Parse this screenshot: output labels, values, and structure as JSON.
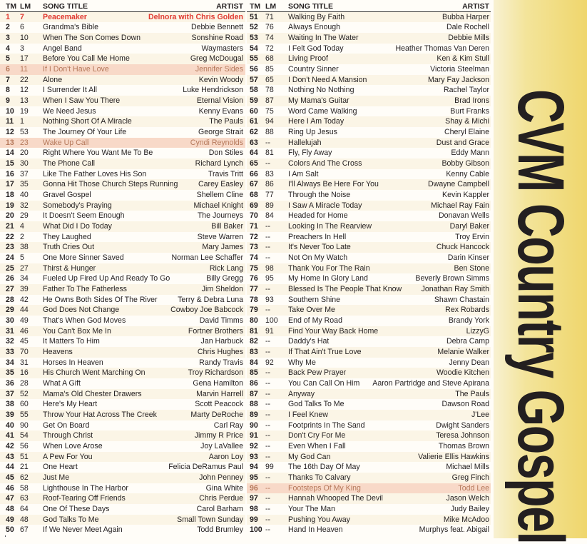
{
  "header": {
    "tm": "TM",
    "lm": "LM",
    "title": "SONG TITLE",
    "artist": "ARTIST"
  },
  "banner": {
    "title": "CVM Country Gospel",
    "background": "#efd66c"
  },
  "colors": {
    "featured": "#e03a32",
    "highlight": "#f8d9c8"
  },
  "left": [
    {
      "tm": "1",
      "lm": "7",
      "title": "Peacemaker",
      "artist": "Delnora with Chris Golden",
      "featured": true
    },
    {
      "tm": "2",
      "lm": "6",
      "title": "Grandma's Bible",
      "artist": "Debbie Bennett"
    },
    {
      "tm": "3",
      "lm": "10",
      "title": "When The Son Comes Down",
      "artist": "Sonshine Road"
    },
    {
      "tm": "4",
      "lm": "3",
      "title": "Angel Band",
      "artist": "Waymasters"
    },
    {
      "tm": "5",
      "lm": "17",
      "title": "Before You Call Me Home",
      "artist": "Greg McDougal"
    },
    {
      "tm": "6",
      "lm": "11",
      "title": "If I Don't Have Love",
      "artist": "Jennifer Sides",
      "highlight": true
    },
    {
      "tm": "7",
      "lm": "22",
      "title": "Alone",
      "artist": "Kevin Woody"
    },
    {
      "tm": "8",
      "lm": "12",
      "title": "I Surrender It All",
      "artist": "Luke Hendrickson"
    },
    {
      "tm": "9",
      "lm": "13",
      "title": "When I Saw You There",
      "artist": "Eternal Vision"
    },
    {
      "tm": "10",
      "lm": "19",
      "title": "We Need Jesus",
      "artist": "Kenny Evans"
    },
    {
      "tm": "11",
      "lm": "1",
      "title": "Nothing Short Of A Miracle",
      "artist": "The Pauls"
    },
    {
      "tm": "12",
      "lm": "53",
      "title": "The Journey Of Your Life",
      "artist": "George Strait"
    },
    {
      "tm": "13",
      "lm": "23",
      "title": "Wake Up Call",
      "artist": "Cyndi Reynolds",
      "highlight": true
    },
    {
      "tm": "14",
      "lm": "20",
      "title": "Right Where You Want Me To Be",
      "artist": "Don Stiles"
    },
    {
      "tm": "15",
      "lm": "30",
      "title": "The Phone Call",
      "artist": "Richard Lynch"
    },
    {
      "tm": "16",
      "lm": "37",
      "title": "Like The Father Loves His Son",
      "artist": "Travis Tritt"
    },
    {
      "tm": "17",
      "lm": "35",
      "title": "Gonna Hit Those Church Steps Running",
      "artist": "Carey Easley"
    },
    {
      "tm": "18",
      "lm": "40",
      "title": "Gravel Gospel",
      "artist": "Shellem Cline"
    },
    {
      "tm": "19",
      "lm": "32",
      "title": "Somebody's Praying",
      "artist": "Michael Knight"
    },
    {
      "tm": "20",
      "lm": "29",
      "title": "It Doesn't Seem Enough",
      "artist": "The Journeys"
    },
    {
      "tm": "21",
      "lm": "4",
      "title": "What Did I Do Today",
      "artist": "Bill Baker"
    },
    {
      "tm": "22",
      "lm": "2",
      "title": "They Laughed",
      "artist": "Steve Warren"
    },
    {
      "tm": "23",
      "lm": "38",
      "title": "Truth Cries Out",
      "artist": "Mary James"
    },
    {
      "tm": "24",
      "lm": "5",
      "title": "One More Sinner Saved",
      "artist": "Norman Lee Schaffer"
    },
    {
      "tm": "25",
      "lm": "27",
      "title": "Thirst & Hunger",
      "artist": "Rick Lang"
    },
    {
      "tm": "26",
      "lm": "34",
      "title": "Fueled Up Fired Up And Ready To Go",
      "artist": "Billy Gregg"
    },
    {
      "tm": "27",
      "lm": "39",
      "title": "Father To The Fatherless",
      "artist": "Jim Sheldon"
    },
    {
      "tm": "28",
      "lm": "42",
      "title": "He Owns Both Sides Of The River",
      "artist": "Terry & Debra Luna"
    },
    {
      "tm": "29",
      "lm": "44",
      "title": "God Does Not Change",
      "artist": "Cowboy Joe Babcock"
    },
    {
      "tm": "30",
      "lm": "49",
      "title": "That's When God Moves",
      "artist": "David Timms"
    },
    {
      "tm": "31",
      "lm": "46",
      "title": "You Can't Box Me In",
      "artist": "Fortner Brothers"
    },
    {
      "tm": "32",
      "lm": "45",
      "title": "It Matters To Him",
      "artist": "Jan Harbuck"
    },
    {
      "tm": "33",
      "lm": "70",
      "title": "Heavens",
      "artist": "Chris Hughes"
    },
    {
      "tm": "34",
      "lm": "31",
      "title": "Horses In Heaven",
      "artist": "Randy Travis"
    },
    {
      "tm": "35",
      "lm": "16",
      "title": "His Church Went Marching On",
      "artist": "Troy Richardson"
    },
    {
      "tm": "36",
      "lm": "28",
      "title": "What A Gift",
      "artist": "Gena Hamilton"
    },
    {
      "tm": "37",
      "lm": "52",
      "title": "Mama's Old Chester Drawers",
      "artist": "Marvin Harrell"
    },
    {
      "tm": "38",
      "lm": "60",
      "title": "Here's My Heart",
      "artist": "Scott Peacock"
    },
    {
      "tm": "39",
      "lm": "55",
      "title": "Throw Your Hat Across The Creek",
      "artist": "Marty DeRoche"
    },
    {
      "tm": "40",
      "lm": "90",
      "title": "Get On Board",
      "artist": "Carl Ray"
    },
    {
      "tm": "41",
      "lm": "54",
      "title": "Through Christ",
      "artist": "Jimmy R Price"
    },
    {
      "tm": "42",
      "lm": "56",
      "title": "When Love Arose",
      "artist": "Joy LaVallee"
    },
    {
      "tm": "43",
      "lm": "51",
      "title": "A Pew For You",
      "artist": "Aaron Loy"
    },
    {
      "tm": "44",
      "lm": "21",
      "title": "One Heart",
      "artist": "Felicia DeRamus Paul"
    },
    {
      "tm": "45",
      "lm": "62",
      "title": "Just Me",
      "artist": "John Penney"
    },
    {
      "tm": "46",
      "lm": "58",
      "title": "Lighthouse In The Harbor",
      "artist": "Gina White"
    },
    {
      "tm": "47",
      "lm": "63",
      "title": "Roof-Tearing Off Friends",
      "artist": "Chris Perdue"
    },
    {
      "tm": "48",
      "lm": "64",
      "title": "One Of These Days",
      "artist": "Carol Barham"
    },
    {
      "tm": "49",
      "lm": "48",
      "title": "God Talks To Me",
      "artist": "Small Town Sunday"
    },
    {
      "tm": "50",
      "lm": "67",
      "title": "If We Never Meet Again",
      "artist": "Todd Brumley"
    }
  ],
  "right": [
    {
      "tm": "51",
      "lm": "71",
      "title": "Walking By Faith",
      "artist": "Bubba Harper"
    },
    {
      "tm": "52",
      "lm": "76",
      "title": "Always Enough",
      "artist": "Dale Rochell"
    },
    {
      "tm": "53",
      "lm": "74",
      "title": "Waiting In The Water",
      "artist": "Debbie Mills"
    },
    {
      "tm": "54",
      "lm": "72",
      "title": "I Felt God Today",
      "artist": "Heather Thomas Van Deren"
    },
    {
      "tm": "55",
      "lm": "68",
      "title": "Living Proof",
      "artist": "Ken & Kim Stull"
    },
    {
      "tm": "56",
      "lm": "85",
      "title": "Country Sinner",
      "artist": "Victoria Steelman"
    },
    {
      "tm": "57",
      "lm": "65",
      "title": "I Don't Need A Mansion",
      "artist": "Mary Fay Jackson"
    },
    {
      "tm": "58",
      "lm": "78",
      "title": "Nothing No Nothing",
      "artist": "Rachel Taylor"
    },
    {
      "tm": "59",
      "lm": "87",
      "title": "My Mama's Guitar",
      "artist": "Brad Irons"
    },
    {
      "tm": "60",
      "lm": "75",
      "title": "Word Came Walking",
      "artist": "Burt Franks"
    },
    {
      "tm": "61",
      "lm": "94",
      "title": "Here I Am Today",
      "artist": "Shay & Michi"
    },
    {
      "tm": "62",
      "lm": "88",
      "title": "Ring Up Jesus",
      "artist": "Cheryl Elaine"
    },
    {
      "tm": "63",
      "lm": "--",
      "title": "Hallelujah",
      "artist": "Dust and Grace"
    },
    {
      "tm": "64",
      "lm": "81",
      "title": "Fly, Fly Away",
      "artist": "Eddy Mann"
    },
    {
      "tm": "65",
      "lm": "--",
      "title": "Colors And The Cross",
      "artist": "Bobby Gibson"
    },
    {
      "tm": "66",
      "lm": "83",
      "title": "I Am Salt",
      "artist": "Kenny Cable"
    },
    {
      "tm": "67",
      "lm": "86",
      "title": "I'll Always Be Here For You",
      "artist": "Dwayne Campbell"
    },
    {
      "tm": "68",
      "lm": "77",
      "title": "Through the Noise",
      "artist": "Kevin Kappler"
    },
    {
      "tm": "69",
      "lm": "89",
      "title": "I Saw A Miracle Today",
      "artist": "Michael Ray Fain"
    },
    {
      "tm": "70",
      "lm": "84",
      "title": "Headed for Home",
      "artist": "Donavan Wells"
    },
    {
      "tm": "71",
      "lm": "--",
      "title": "Looking In The Rearview",
      "artist": "Daryl Baker"
    },
    {
      "tm": "72",
      "lm": "--",
      "title": "Preachers In Hell",
      "artist": "Troy Ervin"
    },
    {
      "tm": "73",
      "lm": "--",
      "title": "It's Never Too Late",
      "artist": "Chuck Hancock"
    },
    {
      "tm": "74",
      "lm": "--",
      "title": "Not On My Watch",
      "artist": "Darin Kinser"
    },
    {
      "tm": "75",
      "lm": "98",
      "title": "Thank You For The Rain",
      "artist": "Ben Stone"
    },
    {
      "tm": "76",
      "lm": "95",
      "title": "My Home In Glory Land",
      "artist": "Beverly Brown Simms"
    },
    {
      "tm": "77",
      "lm": "--",
      "title": "Blessed Is The People That Know",
      "artist": "Jonathan Ray Smith"
    },
    {
      "tm": "78",
      "lm": "93",
      "title": "Southern Shine",
      "artist": "Shawn Chastain"
    },
    {
      "tm": "79",
      "lm": "--",
      "title": "Take Over Me",
      "artist": "Rex Robards"
    },
    {
      "tm": "80",
      "lm": "100",
      "title": "End of My Road",
      "artist": "Brandy York"
    },
    {
      "tm": "81",
      "lm": "91",
      "title": "Find Your Way Back Home",
      "artist": "LizzyG"
    },
    {
      "tm": "82",
      "lm": "--",
      "title": "Daddy's Hat",
      "artist": "Debra Camp"
    },
    {
      "tm": "83",
      "lm": "--",
      "title": "If That Ain't True Love",
      "artist": "Melanie Walker"
    },
    {
      "tm": "84",
      "lm": "92",
      "title": "Why Me",
      "artist": "Jenny Dean"
    },
    {
      "tm": "85",
      "lm": "--",
      "title": "Back Pew Prayer",
      "artist": "Woodie Kitchen"
    },
    {
      "tm": "86",
      "lm": "--",
      "title": "You Can Call On Him",
      "artist": "Aaron Partridge and Steve Apirana"
    },
    {
      "tm": "87",
      "lm": "--",
      "title": "Anyway",
      "artist": "The Pauls"
    },
    {
      "tm": "88",
      "lm": "--",
      "title": "God Talks To Me",
      "artist": "Dawson Road"
    },
    {
      "tm": "89",
      "lm": "--",
      "title": "I Feel Knew",
      "artist": "J'Lee"
    },
    {
      "tm": "90",
      "lm": "--",
      "title": "Footprints In The Sand",
      "artist": "Dwight Sanders"
    },
    {
      "tm": "91",
      "lm": "--",
      "title": "Don't Cry For Me",
      "artist": "Teresa Johnson"
    },
    {
      "tm": "92",
      "lm": "--",
      "title": "Even When I Fall",
      "artist": "Thomas Brown"
    },
    {
      "tm": "93",
      "lm": "--",
      "title": "My God Can",
      "artist": "Valierie Ellis Hawkins"
    },
    {
      "tm": "94",
      "lm": "99",
      "title": "The 16th Day Of May",
      "artist": "Michael Mills"
    },
    {
      "tm": "95",
      "lm": "--",
      "title": "Thanks To Calvary",
      "artist": "Greg Finch"
    },
    {
      "tm": "96",
      "lm": "--",
      "title": "Footsteps Of My King",
      "artist": "Todd Lee",
      "highlight": true
    },
    {
      "tm": "97",
      "lm": "--",
      "title": "Hannah Whooped The Devil",
      "artist": "Jason Welch"
    },
    {
      "tm": "98",
      "lm": "--",
      "title": "Your The Man",
      "artist": "Judy Bailey"
    },
    {
      "tm": "99",
      "lm": "--",
      "title": "Pushing You Away",
      "artist": "Mike McAdoo"
    },
    {
      "tm": "100",
      "lm": "--",
      "title": "Hand In Heaven",
      "artist": "Murphys feat. Abigail"
    }
  ]
}
